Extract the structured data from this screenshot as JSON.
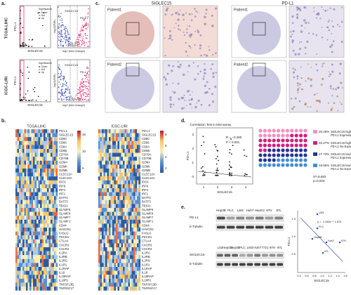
{
  "panel_labels": [
    "a.",
    "b.",
    "c.",
    "d.",
    "e."
  ],
  "a": {
    "cohorts": [
      "TCGA-LIHC",
      "ICGC-LIRI"
    ],
    "scatter_x": "SIGLEC15",
    "scatter_y": "PD-L1",
    "legend_title": "Significance",
    "legend": [
      "Down",
      "Not",
      "Up"
    ],
    "volcano_x": "log2 (fold change)",
    "volcano_y": "-log10(FDR)",
    "volcano_labels": [
      "SIGLEC15",
      "PD-L1"
    ]
  },
  "b": {
    "cohorts": [
      "TCGA-LIHC",
      "ICGC-LIRI"
    ],
    "genes": [
      "PD-L1",
      "SIGLEC15",
      "CD80",
      "CD86",
      "CD8A",
      "CD8B",
      "CD79A",
      "CD79B",
      "GZMA",
      "GZMK",
      "GZMB",
      "CLEC12A",
      "CLEC10A",
      "IDO1",
      "IRF8",
      "IRF4",
      "IRF1",
      "BATF2",
      "BATF3",
      "TBX21",
      "SLAMF6",
      "SLAMF8",
      "SLAMF7",
      "SLAMF1",
      "CD44",
      "HAVCR2",
      "FASLG",
      "PDCD1",
      "CTLA4",
      "CXCR3",
      "CXCR4",
      "IL2RA",
      "IL2RB",
      "IL2RG",
      "IL1R1",
      "IL1RAP",
      "IL18",
      "IL18RAP",
      "IL18R1",
      "TNFSF13B",
      "TNFRSF17"
    ],
    "colorbar1": [
      "15",
      "10",
      "5"
    ],
    "colorbar2": [
      "8",
      "6",
      "4",
      "2"
    ]
  },
  "c": {
    "markers": [
      "SIGLEC15",
      "PD-L1"
    ],
    "patients": [
      "Patient1",
      "Patient2"
    ]
  },
  "d": {
    "title": "Correlation Test in Microarray",
    "stats": [
      "R = −0.280",
      "P < 0.001"
    ],
    "y_label": "PD-L1",
    "x_label": "SIGLEC15",
    "yticks": [
      "3",
      "2",
      "1",
      "0"
    ],
    "xticks": [
      "1",
      "2",
      "3",
      "4"
    ],
    "legend": [
      {
        "pct": "20.45%",
        "text": "SIGLEC15 high/median",
        "text2": "PD-L1 Expressed",
        "color": "#f48fbf"
      },
      {
        "pct": "32.27%",
        "text": "SIGLEC15 high/median",
        "text2": "PD-L1 No Expression",
        "color": "#d81b7a"
      },
      {
        "pct": "27.73%",
        "text": "SIGLEC15 low/none",
        "text2": "PD-L1 Expressed",
        "color": "#283593"
      },
      {
        "pct": "19.55%",
        "text": "SIGLEC15 low/none",
        "text2": "PD-L1 No Expression",
        "color": "#3f8fd8"
      }
    ],
    "chi": "X²=8.683",
    "p": "p=0.003"
  },
  "e": {
    "blot1_lanes": [
      "Hep3B",
      "PLC",
      "LM3",
      "Huh7",
      "HepG2",
      "97H",
      "97L"
    ],
    "blot1_rows": [
      "PD-L1",
      "b-Tubulin"
    ],
    "blot2_lanes": [
      "L02",
      "HepG2",
      "Hep3B",
      "PLC",
      "LM3",
      "Huh7",
      "7721",
      "97H",
      "97L"
    ],
    "blot2_rows": [
      "SIGLEC15",
      "b-Tubulin"
    ],
    "equation": "y = -1.060x + 1.574",
    "points": [
      "LM3",
      "PLC",
      "Hep3B",
      "Huh7",
      "97L",
      "97H"
    ],
    "x_label": "SIGLEC15",
    "y_label": "PD-L1",
    "xticks": [
      "0.4",
      "0.6",
      "0.8",
      "1.0",
      "1.2",
      "1.4",
      "1.6"
    ],
    "yticks": [
      "1.5",
      "1.0",
      "0.5"
    ]
  }
}
